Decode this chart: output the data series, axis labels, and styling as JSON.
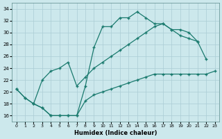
{
  "color": "#1a7a6e",
  "bg_color": "#cce8ec",
  "grid_color": "#aaccd4",
  "xlabel": "Humidex (Indice chaleur)",
  "xlim": [
    -0.5,
    23.5
  ],
  "ylim": [
    15.0,
    35.0
  ],
  "yticks": [
    16,
    18,
    20,
    22,
    24,
    26,
    28,
    30,
    32,
    34
  ],
  "xticks": [
    0,
    1,
    2,
    3,
    4,
    5,
    6,
    7,
    8,
    9,
    10,
    11,
    12,
    13,
    14,
    15,
    16,
    17,
    18,
    19,
    20,
    21,
    22,
    23
  ],
  "line1_x": [
    0,
    1,
    2,
    3,
    4,
    5,
    6,
    7,
    8,
    9,
    10,
    11,
    12,
    13,
    14,
    15,
    16,
    17,
    18,
    19,
    20,
    21
  ],
  "line1_y": [
    20.5,
    19.0,
    18.0,
    17.3,
    16.0,
    16.0,
    16.0,
    16.0,
    21.0,
    27.5,
    31.0,
    31.0,
    32.5,
    32.5,
    33.5,
    32.5,
    31.5,
    31.5,
    30.5,
    30.5,
    30.0,
    28.5
  ],
  "line2_x": [
    0,
    1,
    2,
    3,
    4,
    5,
    6,
    7,
    8,
    9,
    10,
    11,
    12,
    13,
    14,
    15,
    16,
    17,
    18,
    19,
    20,
    21,
    22
  ],
  "line2_y": [
    20.5,
    19.0,
    18.0,
    22.0,
    23.5,
    24.0,
    25.0,
    21.0,
    22.5,
    24.0,
    25.0,
    26.0,
    27.0,
    28.0,
    29.0,
    30.0,
    31.0,
    31.5,
    30.5,
    29.5,
    29.0,
    28.5,
    25.5
  ],
  "line3_x": [
    2,
    3,
    4,
    5,
    6,
    7,
    8,
    9,
    10,
    11,
    12,
    13,
    14,
    15,
    16,
    17,
    18,
    19,
    20,
    21,
    22,
    23
  ],
  "line3_y": [
    18.0,
    17.3,
    16.0,
    16.0,
    16.0,
    16.0,
    18.5,
    19.5,
    20.0,
    20.5,
    21.0,
    21.5,
    22.0,
    22.5,
    23.0,
    23.0,
    23.0,
    23.0,
    23.0,
    23.0,
    23.0,
    23.5
  ]
}
